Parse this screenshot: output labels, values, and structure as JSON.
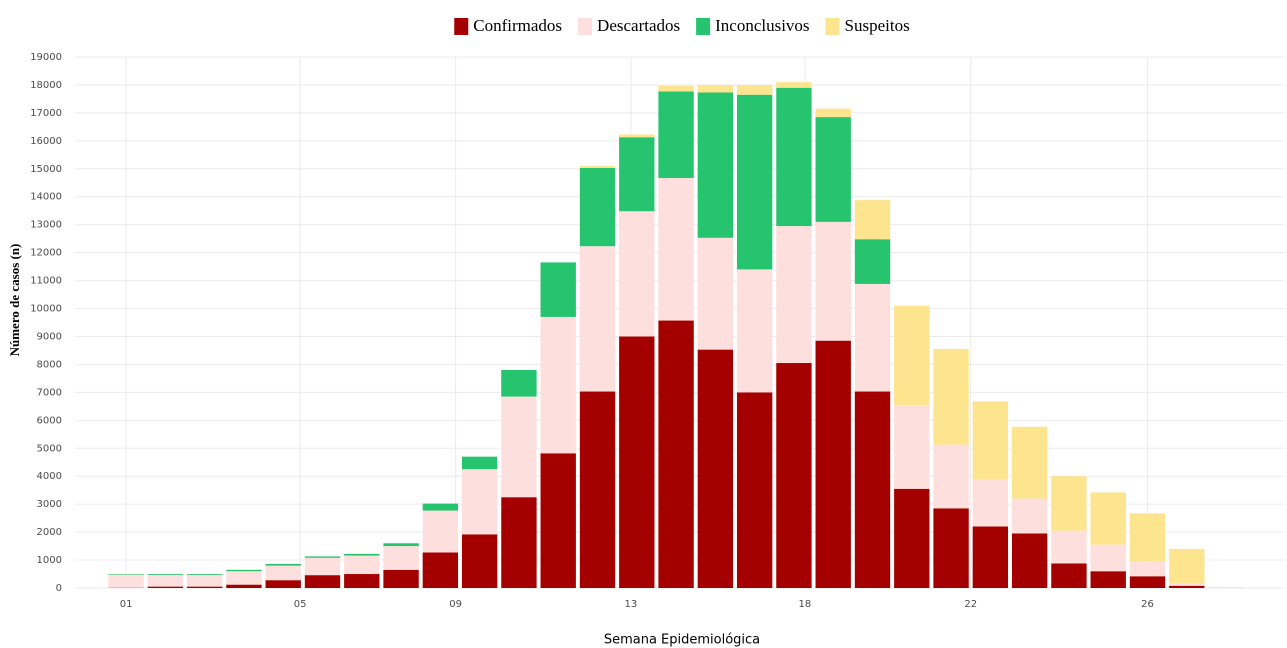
{
  "chart_data": {
    "type": "stacked_bar",
    "x_label": "Semana Epidemiológica",
    "y_label": "Número de casos (n)",
    "x": [
      1,
      2,
      3,
      4,
      5,
      6,
      7,
      8,
      9,
      10,
      11,
      12,
      13,
      14,
      15,
      16,
      17,
      18,
      19,
      20,
      21,
      22,
      23,
      24,
      25,
      26,
      27,
      28,
      29
    ],
    "series": [
      {
        "name": "Confirmados",
        "color": "#a50000",
        "values": [
          10,
          50,
          50,
          120,
          280,
          460,
          500,
          650,
          1270,
          1920,
          3250,
          4820,
          7030,
          9000,
          9570,
          8530,
          7000,
          8050,
          8850,
          7030,
          3550,
          2850,
          2200,
          1950,
          880,
          600,
          420,
          80,
          0
        ]
      },
      {
        "name": "Descartados",
        "color": "#fddfdd",
        "values": [
          470,
          420,
          420,
          480,
          520,
          620,
          660,
          850,
          1500,
          2330,
          3600,
          4880,
          5200,
          4480,
          5100,
          4000,
          4400,
          4900,
          4250,
          3850,
          3000,
          2280,
          1700,
          1250,
          1170,
          950,
          530,
          100,
          0
        ]
      },
      {
        "name": "Inconclusivos",
        "color": "#27c46f",
        "values": [
          20,
          30,
          30,
          50,
          60,
          50,
          60,
          100,
          250,
          450,
          950,
          1950,
          2800,
          2650,
          3100,
          5200,
          6250,
          4950,
          3750,
          1600,
          0,
          0,
          0,
          0,
          0,
          0,
          0,
          0,
          0
        ]
      },
      {
        "name": "Suspeitos",
        "color": "#fde48f",
        "values": [
          0,
          0,
          0,
          0,
          0,
          0,
          0,
          0,
          0,
          0,
          0,
          0,
          70,
          100,
          200,
          270,
          350,
          200,
          300,
          1400,
          3550,
          3420,
          2780,
          2570,
          1950,
          1870,
          1720,
          1220,
          30
        ]
      }
    ],
    "xlim": [
      -0.3,
      30.5
    ],
    "xticks": [
      {
        "value": 1,
        "label": "01"
      },
      {
        "value": 5.43,
        "label": "05"
      },
      {
        "value": 9.39,
        "label": "09"
      },
      {
        "value": 13.85,
        "label": "13"
      },
      {
        "value": 18.28,
        "label": "18"
      },
      {
        "value": 22.5,
        "label": "22"
      },
      {
        "value": 27,
        "label": "26"
      }
    ],
    "ylim": [
      0,
      19000
    ],
    "yticks": [
      0,
      1000,
      2000,
      3000,
      4000,
      5000,
      6000,
      7000,
      8000,
      9000,
      10000,
      11000,
      12000,
      13000,
      14000,
      15000,
      16000,
      17000,
      18000,
      19000
    ],
    "grid": true,
    "legend": "top"
  }
}
